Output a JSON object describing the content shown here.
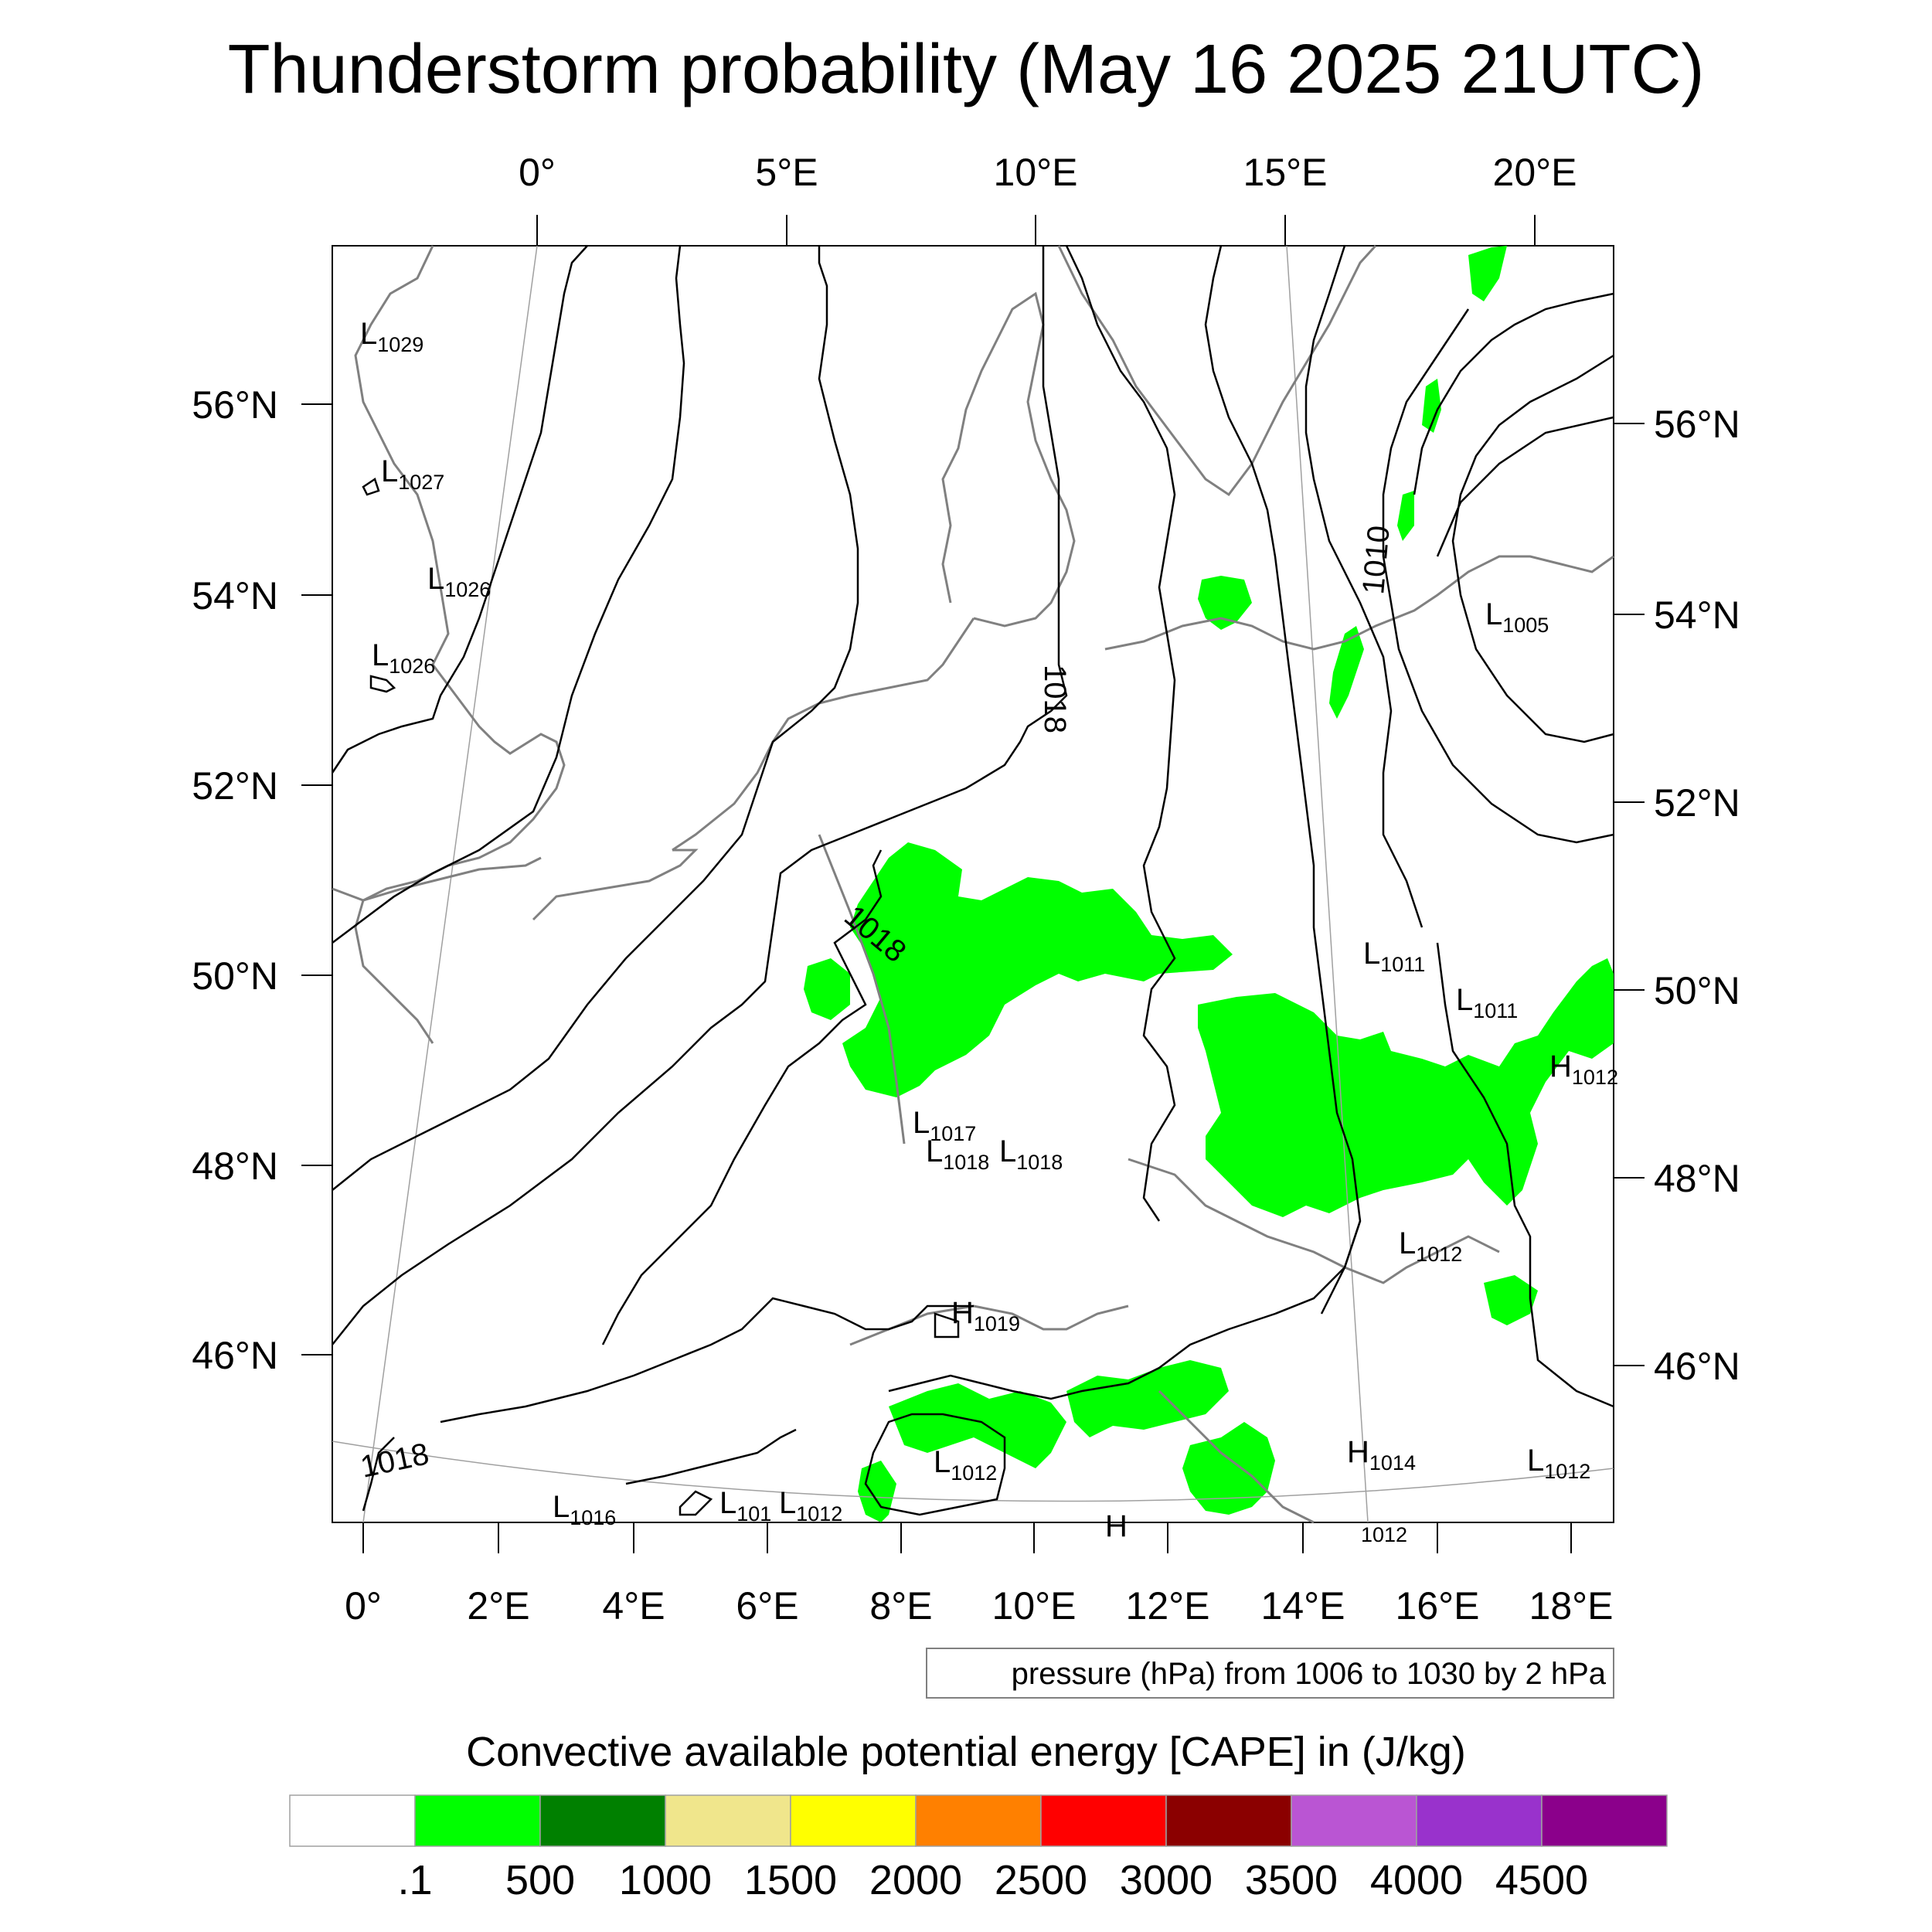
{
  "title": "Thunderstorm probability (May 16 2025 21UTC)",
  "axes": {
    "top_lon_labels": [
      "0°",
      "5°E",
      "10°E",
      "15°E",
      "20°E"
    ],
    "bottom_lon_labels": [
      "0°",
      "2°E",
      "4°E",
      "6°E",
      "8°E",
      "10°E",
      "12°E",
      "14°E",
      "16°E",
      "18°E"
    ],
    "left_lat_labels": [
      "56°N",
      "54°N",
      "52°N",
      "50°N",
      "48°N",
      "46°N"
    ],
    "right_lat_labels": [
      "56°N",
      "54°N",
      "52°N",
      "50°N",
      "48°N",
      "46°N"
    ]
  },
  "contour_note": "pressure (hPa) from 1006 to 1030 by 2 hPa",
  "contour_labels": [
    "1018",
    "1018",
    "1018",
    "1010"
  ],
  "pressure_centers": [
    {
      "type": "L",
      "value": "1029"
    },
    {
      "type": "L",
      "value": "1027"
    },
    {
      "type": "L",
      "value": "1026"
    },
    {
      "type": "L",
      "value": "1026"
    },
    {
      "type": "L",
      "value": "1005"
    },
    {
      "type": "L",
      "value": "1011"
    },
    {
      "type": "L",
      "value": "1011"
    },
    {
      "type": "H",
      "value": "1012"
    },
    {
      "type": "L",
      "value": "1017"
    },
    {
      "type": "L",
      "value": "1018"
    },
    {
      "type": "L",
      "value": "1018"
    },
    {
      "type": "L",
      "value": "1012"
    },
    {
      "type": "H",
      "value": "1019"
    },
    {
      "type": "L",
      "value": "1012"
    },
    {
      "type": "H",
      "value": "1014"
    },
    {
      "type": "L",
      "value": "1012"
    },
    {
      "type": "L",
      "value": "1016"
    },
    {
      "type": "L",
      "value": "101"
    },
    {
      "type": "L",
      "value": "1012"
    },
    {
      "type": "H",
      "value": ""
    },
    {
      "type": "",
      "value": "1012"
    }
  ],
  "colorbar": {
    "title": "Convective available potential energy [CAPE] in (J/kg)",
    "colors": [
      "#ffffff",
      "#00ff00",
      "#008000",
      "#f0e68c",
      "#ffff00",
      "#ff8000",
      "#ff0000",
      "#8b0000",
      "#ba55d3",
      "#9932cc",
      "#8b008b"
    ],
    "tick_labels": [
      ".1",
      "500",
      "1000",
      "1500",
      "2000",
      "2500",
      "3000",
      "3500",
      "4000",
      "4500"
    ]
  },
  "colors": {
    "cape_low": "#00ff00",
    "coastline": "#808080",
    "isobar": "#000000",
    "gridline": "#a0a0a0"
  }
}
